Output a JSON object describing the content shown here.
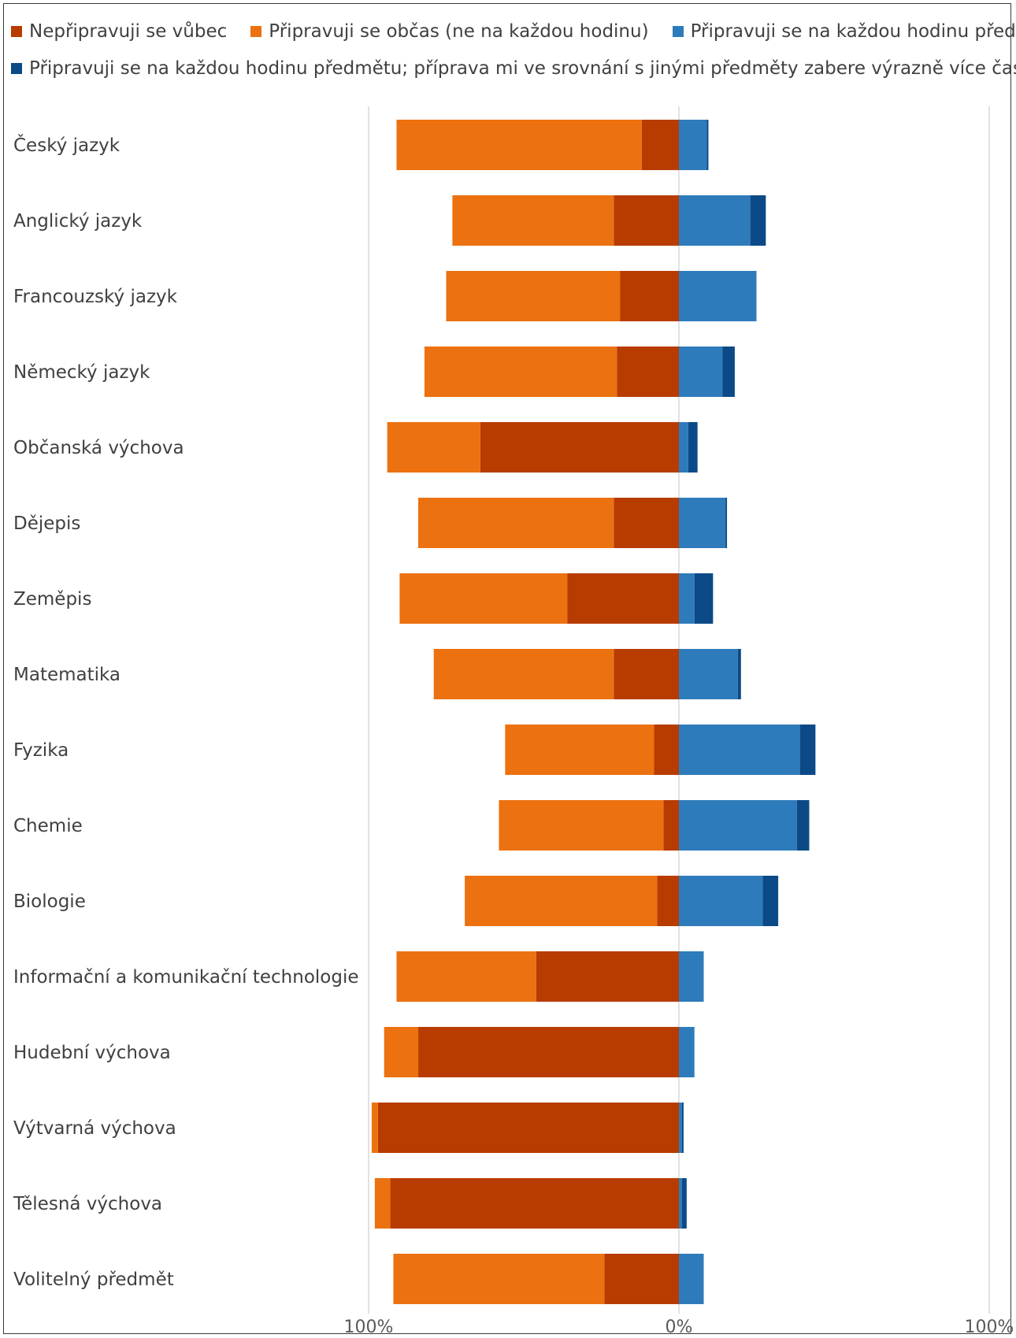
{
  "chart_data": {
    "type": "bar",
    "orientation": "horizontal",
    "stacked": "diverging",
    "categories": [
      "Český jazyk",
      "Anglický jazyk",
      "Francouzský jazyk",
      "Německý jazyk",
      "Občanská výchova",
      "Dějepis",
      "Zeměpis",
      "Matematika",
      "Fyzika",
      "Chemie",
      "Biologie",
      "Informační a komunikační technologie",
      "Hudební výchova",
      "Výtvarná výchova",
      "Tělesná výchova",
      "Volitelný předmět"
    ],
    "series": [
      {
        "name": "Nepřipravuji se vůbec",
        "color": "#b83b00",
        "side": "left",
        "values": [
          12,
          21,
          19,
          20,
          64,
          21,
          36,
          21,
          8,
          5,
          7,
          46,
          84,
          97,
          93,
          24
        ]
      },
      {
        "name": "Připravuji se občas (ne na každou hodinu)",
        "color": "#ec7110",
        "side": "left",
        "values": [
          79,
          52,
          56,
          62,
          30,
          63,
          54,
          58,
          48,
          53,
          62,
          45,
          11,
          2,
          5,
          68
        ]
      },
      {
        "name": "Připravuji se na každou hodinu předmětu",
        "color": "#2e7bbc",
        "side": "right",
        "values": [
          9,
          23,
          25,
          14,
          3,
          15,
          5,
          19,
          39,
          38,
          27,
          8,
          5,
          1,
          1,
          8
        ]
      },
      {
        "name": "Připravuji se na každou hodinu předmětu; příprava mi ve srovnání s jinými předměty zabere výrazně více času",
        "color": "#0b4a86",
        "side": "right",
        "values": [
          0.5,
          5,
          0,
          4,
          3,
          0.5,
          6,
          1,
          5,
          4,
          5,
          0,
          0,
          0.5,
          1.5,
          0
        ]
      }
    ],
    "xlim": [
      -100,
      100
    ],
    "x_ticks": [
      "100%",
      "0%",
      "100%"
    ],
    "grid": "vertical",
    "legend_position": "top"
  }
}
